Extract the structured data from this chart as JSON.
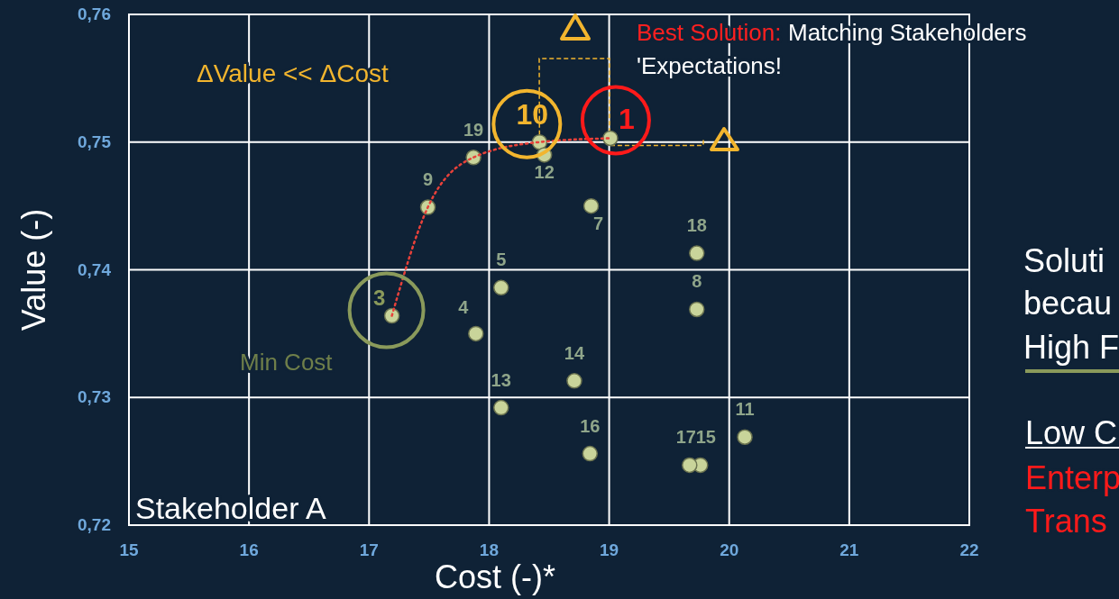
{
  "chart_data": {
    "type": "scatter",
    "xlabel": "Cost (-)*",
    "ylabel": "Value (-)",
    "xlim": [
      15,
      22
    ],
    "ylim": [
      0.72,
      0.76
    ],
    "xticks": [
      15,
      16,
      17,
      18,
      19,
      20,
      21,
      22
    ],
    "yticks": [
      {
        "value": 0.72,
        "label": "0,72"
      },
      {
        "value": 0.73,
        "label": "0,73"
      },
      {
        "value": 0.74,
        "label": "0,74"
      },
      {
        "value": 0.75,
        "label": "0,75"
      },
      {
        "value": 0.76,
        "label": "0,76"
      }
    ],
    "grid": true,
    "marker": "circle",
    "series": [
      {
        "color": "#c9d49a",
        "x": [
          19.01,
          18.42,
          17.19,
          17.89,
          18.1,
          18.85,
          19.73,
          18.46,
          17.49,
          20.13,
          18.71,
          18.1,
          18.84,
          19.76,
          19.67,
          19.73,
          17.87
        ],
        "values": [
          0.7503,
          0.75,
          0.7364,
          0.735,
          0.7386,
          0.745,
          0.7369,
          0.749,
          0.7449,
          0.7269,
          0.7313,
          0.7292,
          0.7256,
          0.7247,
          0.7247,
          0.7413,
          0.7488
        ]
      },
      {
        "type": "line",
        "color": "#e8413a",
        "line_style": "dotted",
        "marker": "none",
        "x": [
          17.19,
          17.49,
          17.87,
          18.42,
          19.01
        ],
        "values": [
          0.7364,
          0.7449,
          0.7488,
          0.75,
          0.7503
        ]
      }
    ],
    "annotations": [
      {
        "text": "1",
        "x": 19.01,
        "y": 0.7503
      },
      {
        "text": "10",
        "x": 18.42,
        "y": 0.75
      },
      {
        "text": "3",
        "x": 17.19,
        "y": 0.7364
      },
      {
        "text": "4",
        "x": 17.89,
        "y": 0.735
      },
      {
        "text": "5",
        "x": 18.1,
        "y": 0.7386
      },
      {
        "text": "7",
        "x": 18.85,
        "y": 0.745
      },
      {
        "text": "8",
        "x": 19.73,
        "y": 0.7369
      },
      {
        "text": "12",
        "x": 18.46,
        "y": 0.749
      },
      {
        "text": "9",
        "x": 17.49,
        "y": 0.7449
      },
      {
        "text": "11",
        "x": 20.13,
        "y": 0.7269
      },
      {
        "text": "14",
        "x": 18.71,
        "y": 0.7313
      },
      {
        "text": "13",
        "x": 18.1,
        "y": 0.7292
      },
      {
        "text": "16",
        "x": 18.84,
        "y": 0.7256
      },
      {
        "text": "15",
        "x": 19.76,
        "y": 0.7247
      },
      {
        "text": "17",
        "x": 19.67,
        "y": 0.7247
      },
      {
        "text": "18",
        "x": 19.73,
        "y": 0.7413
      },
      {
        "text": "19",
        "x": 17.87,
        "y": 0.7488
      },
      "Best Solution:",
      "Matching Stakeholders",
      "'Expectations!",
      "ΔValue << ΔCost",
      "Min Cost",
      "Stakeholder A",
      "Soluti",
      "becau",
      "High F",
      "Low C",
      "Enterp",
      "Trans"
    ]
  }
}
